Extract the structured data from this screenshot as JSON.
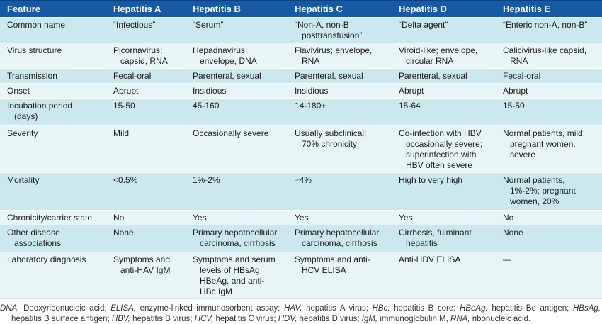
{
  "colors": {
    "header_bg": "#1659a4",
    "header_top_edge": "#0a4286",
    "header_text": "#ffffff",
    "row_odd_bg": "#cbe8ee",
    "row_even_bg": "#e7f5f7",
    "body_text": "#1c1c1c"
  },
  "table": {
    "columns": [
      "Feature",
      "Hepatitis A",
      "Hepatitis B",
      "Hepatitis C",
      "Hepatitis D",
      "Hepatitis E"
    ],
    "rows": [
      {
        "cells": [
          "Common name",
          "“Infectious”",
          "“Serum”",
          "“Non-A, non-B\nposttransfusion”",
          "“Delta agent”",
          "“Enteric non-A, non-B”"
        ]
      },
      {
        "cells": [
          "Virus structure",
          "Picornavirus;\ncapsid, RNA",
          "Hepadnavirus;\nenvelope, DNA",
          "Flavivirus; envelope,\nRNA",
          "Viroid-like; envelope,\ncircular RNA",
          "Calicivirus-like capsid,\nRNA"
        ]
      },
      {
        "cells": [
          "Transmission",
          "Fecal-oral",
          "Parenteral, sexual",
          "Parenteral, sexual",
          "Parenteral, sexual",
          "Fecal-oral"
        ]
      },
      {
        "cells": [
          "Onset",
          "Abrupt",
          "Insidious",
          "Insidious",
          "Abrupt",
          "Abrupt"
        ]
      },
      {
        "cells": [
          "Incubation period\n(days)",
          "15-50",
          "45-160",
          "14-180+",
          "15-64",
          "15-50"
        ]
      },
      {
        "cells": [
          "Severity",
          "Mild",
          "Occasionally severe",
          "Usually subclinical;\n70% chronicity",
          "Co-infection with HBV\noccasionally severe;\nsuperinfection with\nHBV often severe",
          "Normal patients, mild;\npregnant women,\nsevere"
        ]
      },
      {
        "cells": [
          "Mortality",
          "<0.5%",
          "1%-2%",
          "≈4%",
          "High to very high",
          "Normal patients,\n1%-2%; pregnant\nwomen, 20%"
        ]
      },
      {
        "cells": [
          "Chronicity/carrier state",
          "No",
          "Yes",
          "Yes",
          "Yes",
          "No"
        ]
      },
      {
        "cells": [
          "Other disease\nassociations",
          "None",
          "Primary hepatocellular\ncarcinoma, cirrhosis",
          "Primary hepatocellular\ncarcinoma, cirrhosis",
          "Cirrhosis, fulminant\nhepatitis",
          "None"
        ]
      },
      {
        "cells": [
          "Laboratory diagnosis",
          "Symptoms and\nanti-HAV IgM",
          "Symptoms and serum\nlevels of HBsAg,\nHBeAg, and anti-\nHBc IgM",
          "Symptoms and anti-\nHCV ELISA",
          "Anti-HDV ELISA",
          "—"
        ]
      }
    ]
  },
  "footnote": {
    "segments": [
      {
        "text": "DNA,",
        "italic": true
      },
      {
        "text": " Deoxyribonucleic acid; ",
        "italic": false
      },
      {
        "text": "ELISA,",
        "italic": true
      },
      {
        "text": " enzyme-linked immunosorbent assay; ",
        "italic": false
      },
      {
        "text": "HAV,",
        "italic": true
      },
      {
        "text": " hepatitis A virus; ",
        "italic": false
      },
      {
        "text": "HBc,",
        "italic": true
      },
      {
        "text": " hepatitis B core; ",
        "italic": false
      },
      {
        "text": "HBeAg,",
        "italic": true
      },
      {
        "text": " hepatitis Be antigen; ",
        "italic": false
      },
      {
        "text": "HBsAg,",
        "italic": true
      },
      {
        "text": " hepatitis B surface antigen; ",
        "italic": false
      },
      {
        "text": "HBV,",
        "italic": true
      },
      {
        "text": " hepatitis B virus; ",
        "italic": false
      },
      {
        "text": "HCV,",
        "italic": true
      },
      {
        "text": " hepatitis C virus; ",
        "italic": false
      },
      {
        "text": "HDV,",
        "italic": true
      },
      {
        "text": " hepatitis D virus; ",
        "italic": false
      },
      {
        "text": "IgM,",
        "italic": true
      },
      {
        "text": " immunoglobulin M, ",
        "italic": false
      },
      {
        "text": "RNA,",
        "italic": true
      },
      {
        "text": " ribonucleic acid.",
        "italic": false
      }
    ]
  }
}
